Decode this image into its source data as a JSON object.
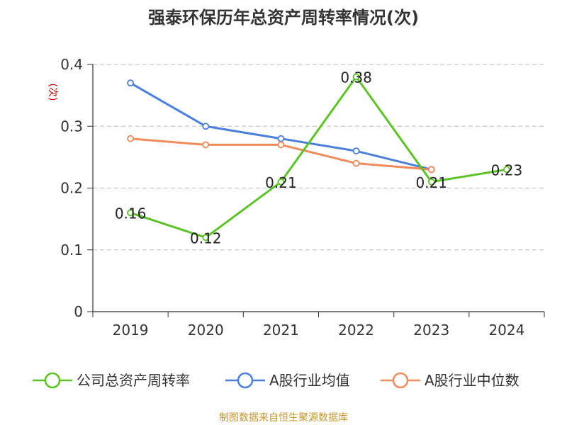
{
  "chart_data": {
    "type": "line",
    "title": "强泰环保历年总资产周转率情况(次)",
    "ylabel": "(次)",
    "xlabel": "",
    "categories": [
      "2019",
      "2020",
      "2021",
      "2022",
      "2023",
      "2024"
    ],
    "ylim": [
      0,
      0.4
    ],
    "yticks": [
      0,
      0.1,
      0.2,
      0.3,
      0.4
    ],
    "ytick_labels": [
      "0",
      "0.1",
      "0.2",
      "0.3",
      "0.4"
    ],
    "grid": true,
    "legend_position": "bottom",
    "series": [
      {
        "name": "公司总资产周转率",
        "color": "#5bc424",
        "values": [
          0.16,
          0.12,
          0.21,
          0.38,
          0.21,
          0.23
        ],
        "labels": [
          "0.16",
          "0.12",
          "0.21",
          "0.38",
          "0.21",
          "0.23"
        ]
      },
      {
        "name": "A股行业均值",
        "color": "#4a7fdc",
        "values": [
          0.37,
          0.3,
          0.28,
          0.26,
          0.23,
          null
        ]
      },
      {
        "name": "A股行业中位数",
        "color": "#f28a5a",
        "values": [
          0.28,
          0.27,
          0.27,
          0.24,
          0.23,
          null
        ]
      }
    ],
    "source": "制图数据来自恒生聚源数据库"
  }
}
